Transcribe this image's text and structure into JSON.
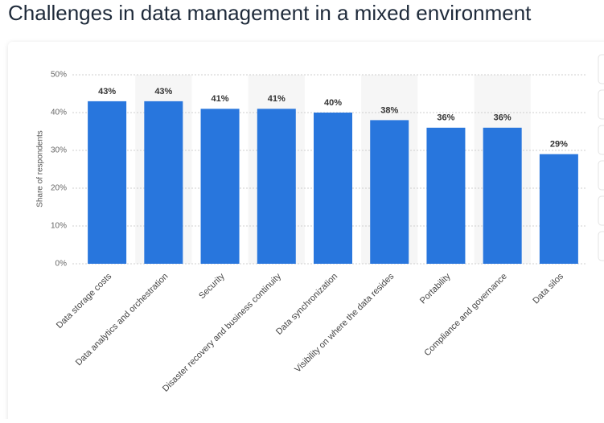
{
  "chart_data": {
    "type": "bar",
    "title": "Challenges in data management in a mixed environment",
    "y_label": "Share of respondents",
    "categories": [
      "Data storage costs",
      "Data analytics and orchestration",
      "Security",
      "Disaster recovery and business continuity",
      "Data synchronization",
      "Visibility on where the data resides",
      "Portability",
      "Compliance and governance",
      "Data silos"
    ],
    "values": [
      43,
      43,
      41,
      41,
      40,
      38,
      36,
      36,
      29
    ],
    "value_labels": [
      "43%",
      "43%",
      "41%",
      "41%",
      "40%",
      "38%",
      "36%",
      "36%",
      "29%"
    ],
    "color": "#2876dd",
    "ylim": [
      0,
      50
    ],
    "yticks": [
      {
        "value": 0,
        "label": "0%"
      },
      {
        "value": 10,
        "label": "10%"
      },
      {
        "value": 20,
        "label": "20%"
      },
      {
        "value": 30,
        "label": "30%"
      },
      {
        "value": 40,
        "label": "40%"
      },
      {
        "value": 50,
        "label": "50%"
      }
    ],
    "grid": true
  }
}
